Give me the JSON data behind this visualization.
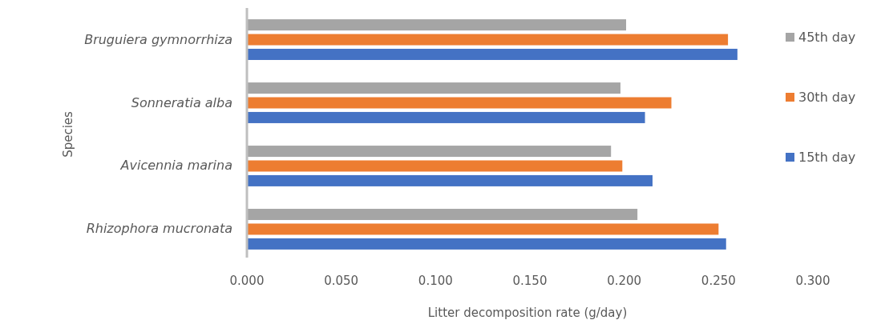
{
  "chart_data": {
    "type": "bar",
    "orientation": "horizontal",
    "xlabel": "Litter decomposition rate (g/day)",
    "ylabel": "Species",
    "categories": [
      "Bruguiera gymnorrhiza",
      "Sonneratia alba",
      "Avicennia marina",
      "Rhizophora mucronata"
    ],
    "series": [
      {
        "name": "15th day",
        "color": "#4472c4",
        "values": [
          0.26,
          0.211,
          0.215,
          0.254
        ]
      },
      {
        "name": "30th day",
        "color": "#ed7d31",
        "values": [
          0.255,
          0.225,
          0.199,
          0.25
        ]
      },
      {
        "name": "45th day",
        "color": "#a5a5a5",
        "values": [
          0.201,
          0.198,
          0.193,
          0.207
        ]
      }
    ],
    "xlim": [
      0,
      0.3
    ],
    "xticks": [
      {
        "value": 0,
        "label": "0.000"
      },
      {
        "value": 0.05,
        "label": "0.050"
      },
      {
        "value": 0.1,
        "label": "0.100"
      },
      {
        "value": 0.15,
        "label": "0.150"
      },
      {
        "value": 0.2,
        "label": "0.200"
      },
      {
        "value": 0.25,
        "label": "0.250"
      },
      {
        "value": 0.3,
        "label": "0.300"
      }
    ],
    "grid": false,
    "legend": "right"
  }
}
